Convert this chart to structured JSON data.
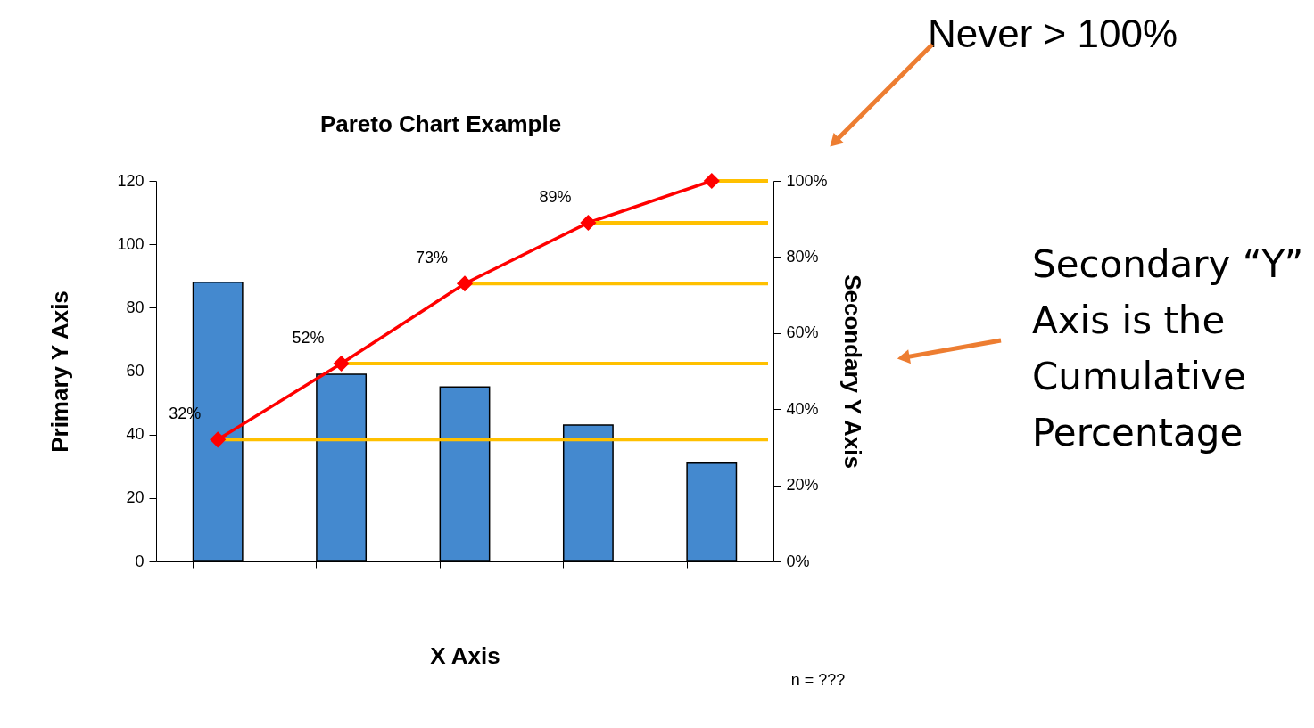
{
  "chart_data": {
    "type": "bar",
    "title": "Pareto Chart Example",
    "xlabel": "X Axis",
    "ylabel": "Primary Y Axis",
    "y2label": "Secondary Y Axis",
    "categories": [
      null,
      null,
      null,
      null,
      null
    ],
    "series": [
      {
        "color": "#4489cf",
        "values": [
          88,
          59,
          55,
          43,
          31
        ]
      },
      {
        "type": "line",
        "axis": "y2",
        "color": "#ff0000",
        "values": [
          32,
          52,
          73,
          89,
          100
        ],
        "value_labels": [
          "32%",
          "52%",
          "73%",
          "89%",
          null
        ]
      }
    ],
    "ylim": [
      0,
      120
    ],
    "yticks": [
      0,
      20,
      40,
      60,
      80,
      100,
      120
    ],
    "y2lim": [
      0,
      100
    ],
    "y2ticks": [
      {
        "value": 0,
        "label": "0%"
      },
      {
        "value": 20,
        "label": "20%"
      },
      {
        "value": 40,
        "label": "40%"
      },
      {
        "value": 60,
        "label": "60%"
      },
      {
        "value": 80,
        "label": "80%"
      },
      {
        "value": 100,
        "label": "100%"
      }
    ],
    "ref_lines": [
      {
        "axis": "y2",
        "value": 32,
        "color": "#ffc000"
      },
      {
        "axis": "y2",
        "value": 52,
        "color": "#ffc000"
      },
      {
        "axis": "y2",
        "value": 73,
        "color": "#ffc000"
      },
      {
        "axis": "y2",
        "value": 89,
        "color": "#ffc000"
      },
      {
        "axis": "y2",
        "value": 100,
        "color": "#ffc000"
      }
    ],
    "marker": "diamond",
    "grid": false,
    "annotations": [
      "Never > 100%",
      "Secondary “Y” Axis is the Cumulative Percentage",
      "n = ???"
    ]
  }
}
